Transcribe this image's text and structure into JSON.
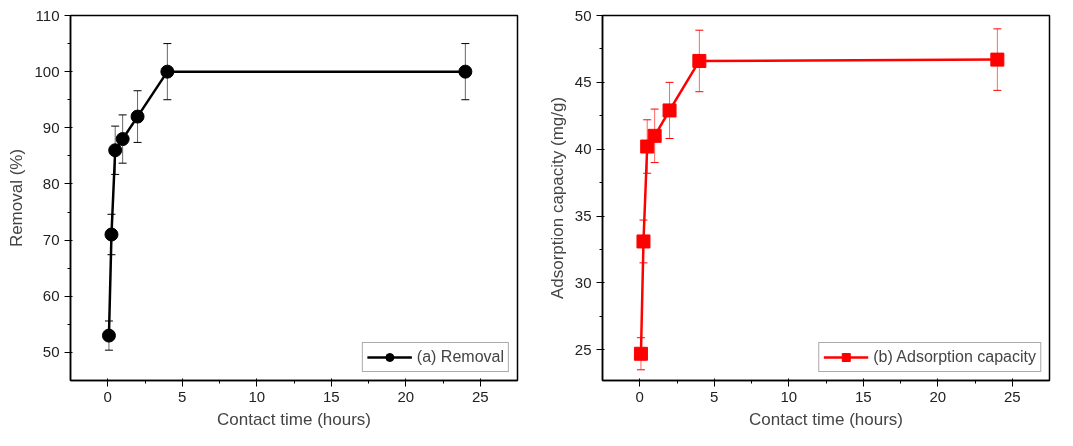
{
  "chart_data": [
    {
      "type": "line",
      "xlabel": "Contact time (hours)",
      "ylabel": "Removal (%)",
      "x": [
        0.08,
        0.25,
        0.5,
        1,
        2,
        4,
        24
      ],
      "series": [
        {
          "name": "(a) Removal",
          "color": "#000000",
          "values": [
            53,
            71,
            86,
            88,
            92,
            100,
            100
          ],
          "errors": [
            2.6,
            3.6,
            4.3,
            4.3,
            4.6,
            5,
            5
          ]
        }
      ],
      "xlim": [
        -2.5,
        27.5
      ],
      "xticks": [
        0,
        5,
        10,
        15,
        20,
        25
      ],
      "ylim": [
        45,
        110
      ],
      "yticks": [
        50,
        60,
        70,
        80,
        90,
        100,
        110
      ],
      "grid": false,
      "legend": "bottom right",
      "marker": "circle",
      "line_style": "solid"
    },
    {
      "type": "line",
      "xlabel": "Contact time (hours)",
      "ylabel": "Adsorption capacity (mg/g)",
      "x": [
        0.08,
        0.25,
        0.5,
        1,
        2,
        4,
        24
      ],
      "series": [
        {
          "name": "(b) Adsorption capacity",
          "color": "#ff0000",
          "values": [
            24.7,
            33.1,
            40.2,
            41,
            42.9,
            46.6,
            46.7
          ],
          "errors": [
            1.2,
            1.6,
            2,
            2,
            2.1,
            2.3,
            2.3
          ]
        }
      ],
      "xlim": [
        -2.5,
        27.5
      ],
      "xticks": [
        0,
        5,
        10,
        15,
        20,
        25
      ],
      "ylim": [
        22.7,
        50
      ],
      "yticks": [
        25,
        30,
        35,
        40,
        45,
        50
      ],
      "grid": false,
      "legend": "bottom right",
      "marker": "square",
      "line_style": "solid"
    }
  ]
}
